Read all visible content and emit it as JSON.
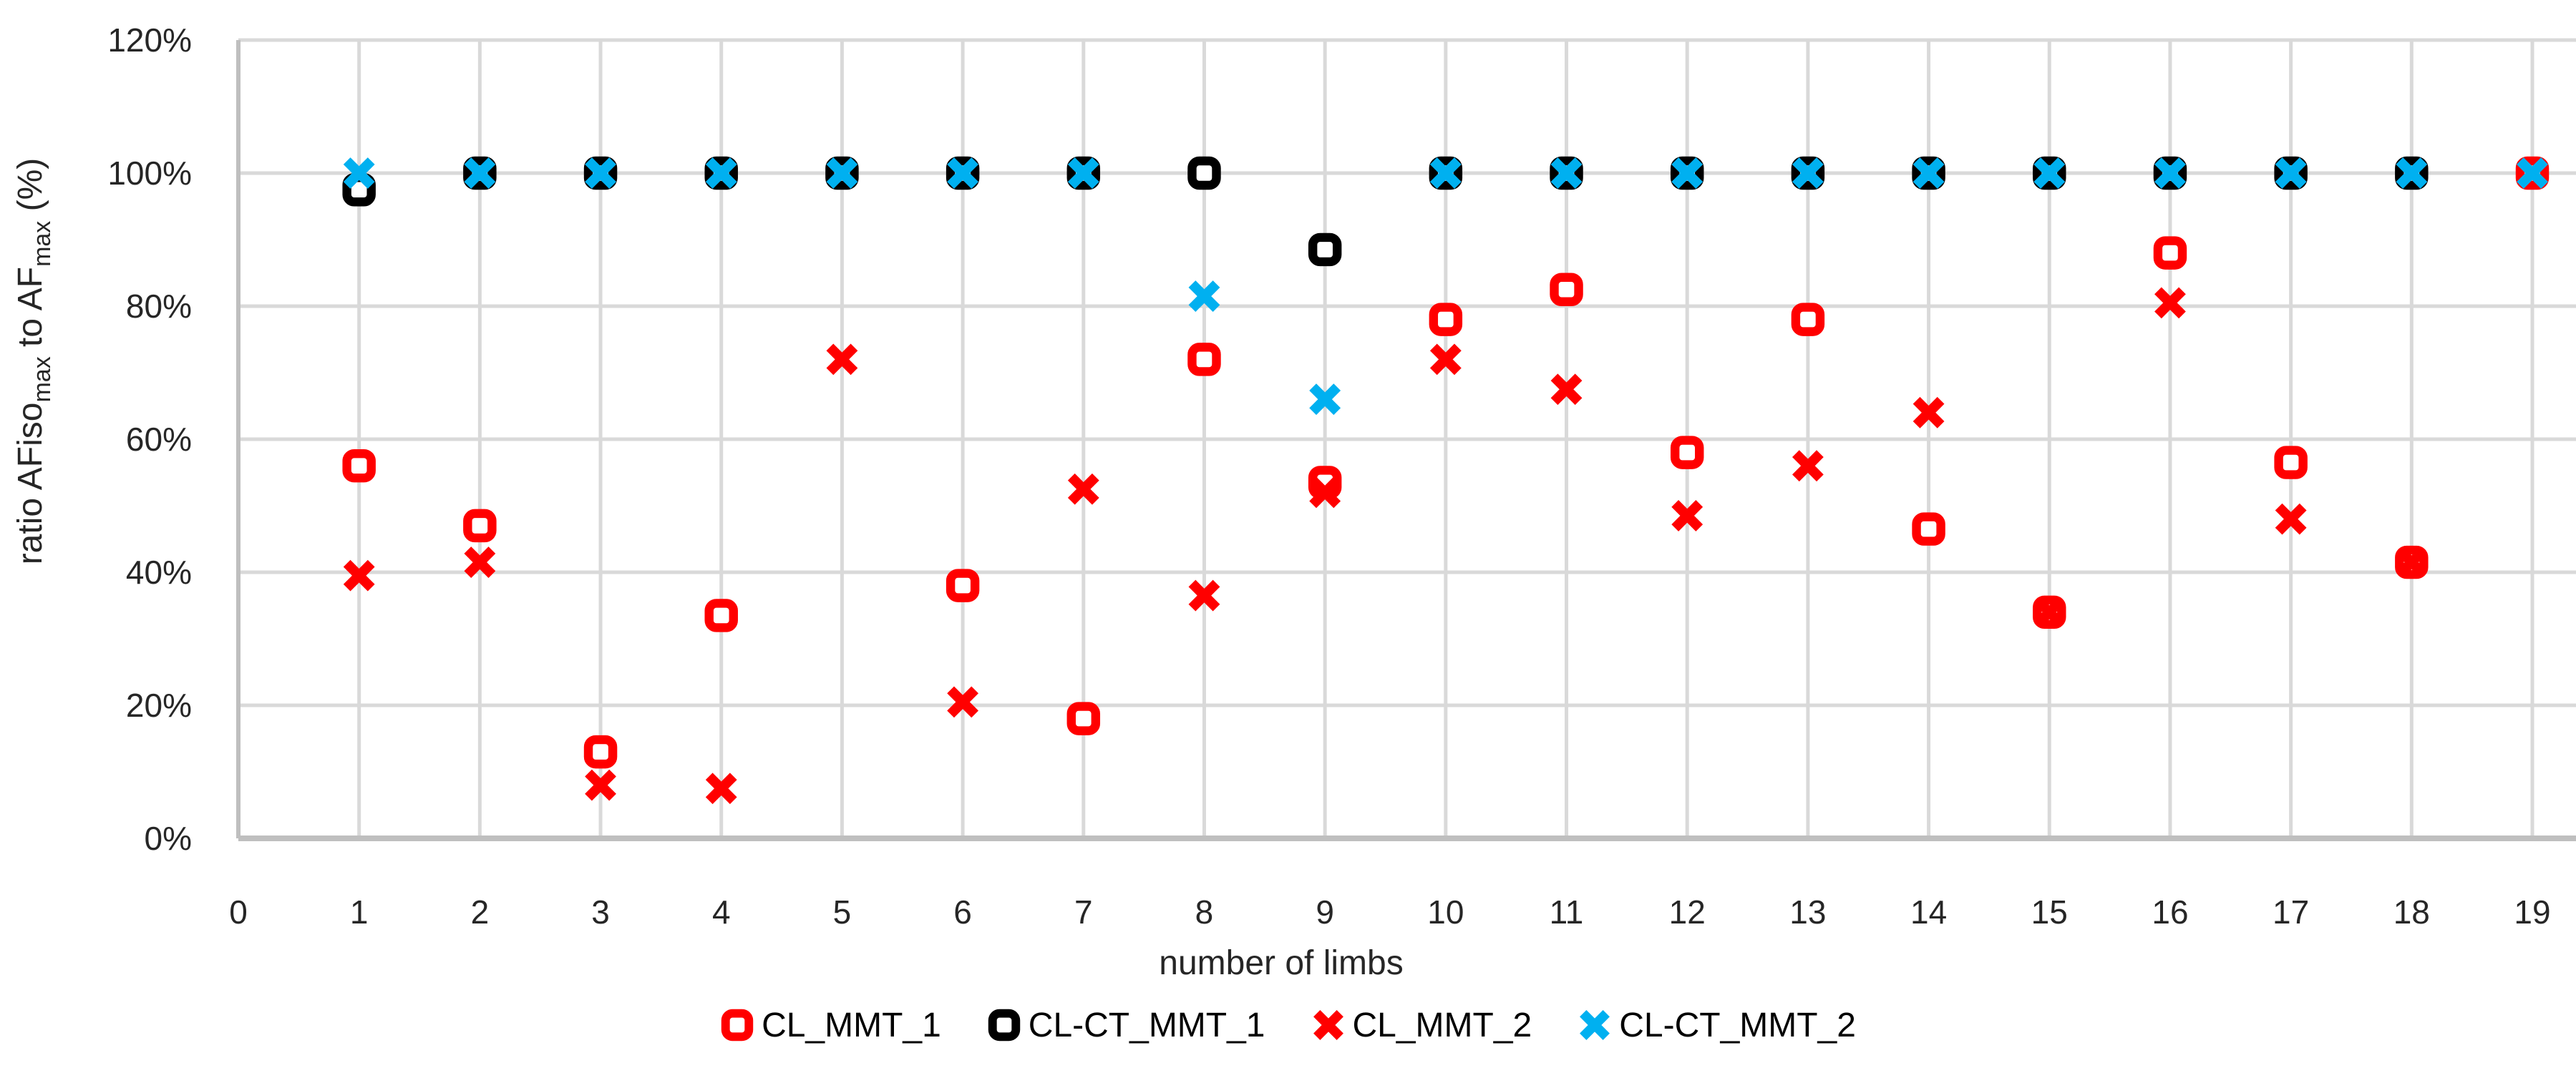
{
  "chart_data": {
    "type": "scatter",
    "xlabel": "number of limbs",
    "ylabel_parts": [
      {
        "t": "ratio AFiso",
        "sub": false
      },
      {
        "t": "max",
        "sub": true
      },
      {
        "t": " to AF",
        "sub": false
      },
      {
        "t": "max",
        "sub": true
      },
      {
        "t": " (%)",
        "sub": false
      }
    ],
    "x_ticks": [
      0,
      1,
      2,
      3,
      4,
      5,
      6,
      7,
      8,
      9,
      10,
      11,
      12,
      13,
      14,
      15,
      16,
      17,
      18,
      19
    ],
    "y_ticks": [
      "0%",
      "20%",
      "40%",
      "60%",
      "80%",
      "100%",
      "120%"
    ],
    "y_tick_values": [
      0,
      20,
      40,
      60,
      80,
      100,
      120
    ],
    "xlim": [
      0,
      19
    ],
    "ylim": [
      0,
      120
    ],
    "grid": true,
    "legend_position": "bottom",
    "categories": [
      1,
      2,
      3,
      4,
      5,
      6,
      7,
      8,
      9,
      10,
      11,
      12,
      13,
      14,
      15,
      16,
      17,
      18,
      19
    ],
    "series": [
      {
        "name": "CL_MMT_1",
        "marker": "square",
        "color": "#FF0000",
        "values": [
          56,
          47,
          13,
          33.5,
          null,
          38,
          18,
          72,
          53.5,
          78,
          82.5,
          58,
          78,
          46.5,
          34,
          88,
          56.5,
          41.5,
          100
        ]
      },
      {
        "name": "CL-CT_MMT_1",
        "marker": "square",
        "color": "#000000",
        "values": [
          97.5,
          100,
          100,
          100,
          100,
          100,
          100,
          100,
          88.5,
          100,
          100,
          100,
          100,
          100,
          100,
          100,
          100,
          100,
          null
        ]
      },
      {
        "name": "CL_MMT_2",
        "marker": "x",
        "color": "#FF0000",
        "values": [
          39.5,
          41.5,
          8,
          7.5,
          72,
          20.5,
          52.5,
          36.5,
          52,
          72,
          67.5,
          48.5,
          56,
          64,
          34,
          80.5,
          48,
          41.5,
          100
        ]
      },
      {
        "name": "CL-CT_MMT_2",
        "marker": "x",
        "color": "#00B0F0",
        "values": [
          100,
          100,
          100,
          100,
          100,
          100,
          100,
          81.5,
          66,
          100,
          100,
          100,
          100,
          100,
          100,
          100,
          100,
          100,
          100
        ]
      }
    ],
    "draw_order": [
      "CL-CT_MMT_1",
      "CL_MMT_1",
      "CL_MMT_2",
      "CL-CT_MMT_2"
    ],
    "colors": {
      "gridline": "#D9D9D9",
      "axis_line": "#BFBFBF",
      "tick_text": "#262626",
      "red": "#FF0000",
      "black": "#000000",
      "blue": "#00B0F0"
    }
  }
}
